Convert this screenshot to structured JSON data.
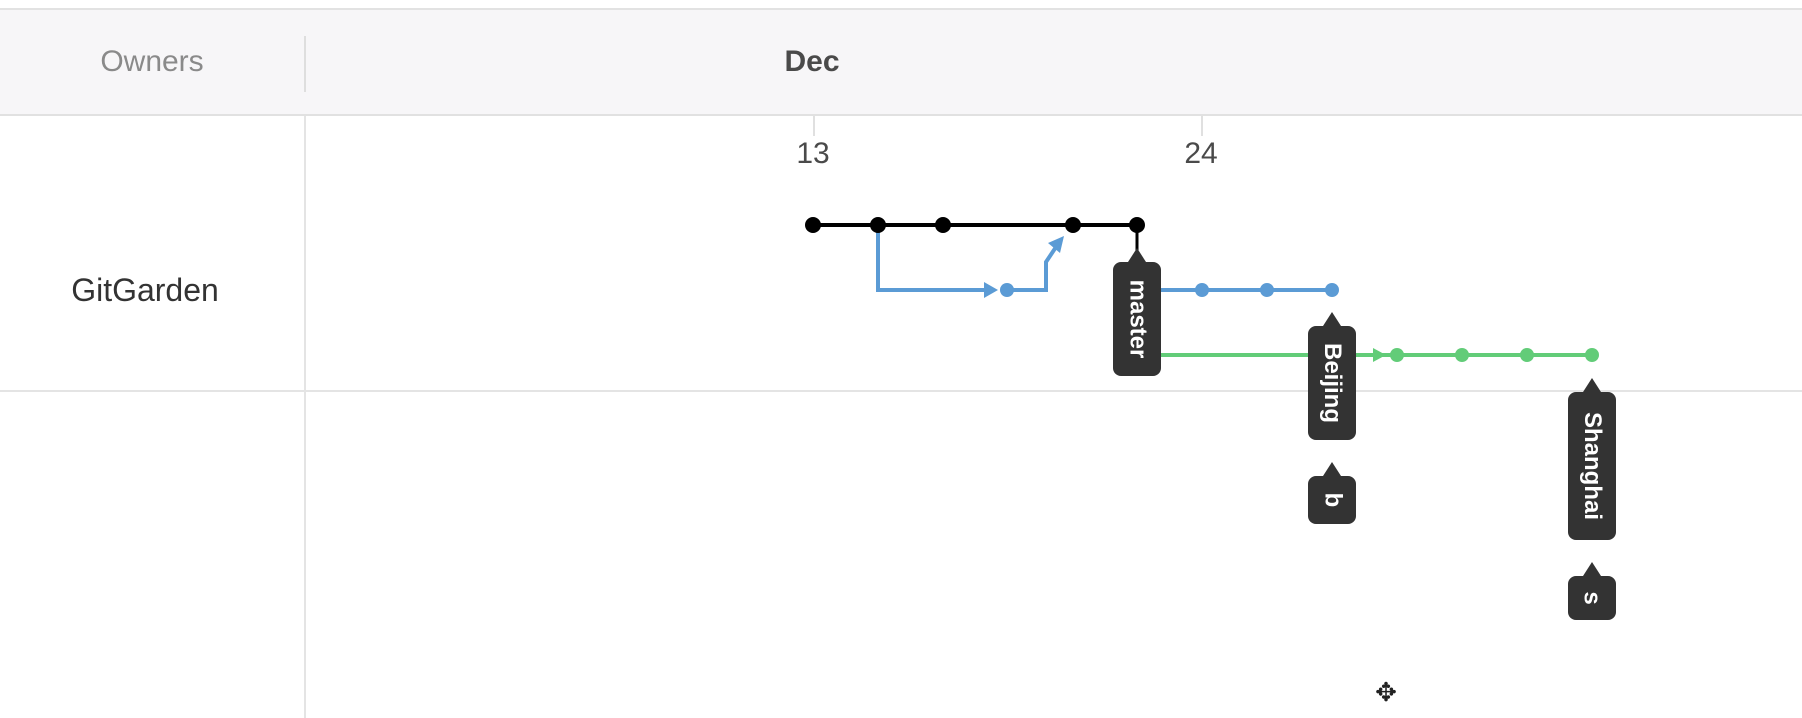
{
  "header": {
    "owners_label": "Owners",
    "month_label": "Dec"
  },
  "timeline": {
    "day_labels": [
      "13",
      "24"
    ]
  },
  "owners": [
    {
      "name": "GitGarden"
    }
  ],
  "branches": [
    {
      "name": "master",
      "color": "#000000"
    },
    {
      "name": "Beijing",
      "color": "#5b9bd5"
    },
    {
      "name": "Shanghai",
      "color": "#62cc78"
    }
  ],
  "tags": {
    "master": "master",
    "beijing": "Beijing",
    "b": "b",
    "shanghai": "Shanghai",
    "s": "s"
  },
  "cursor": {
    "icon": "move-cursor-icon"
  }
}
